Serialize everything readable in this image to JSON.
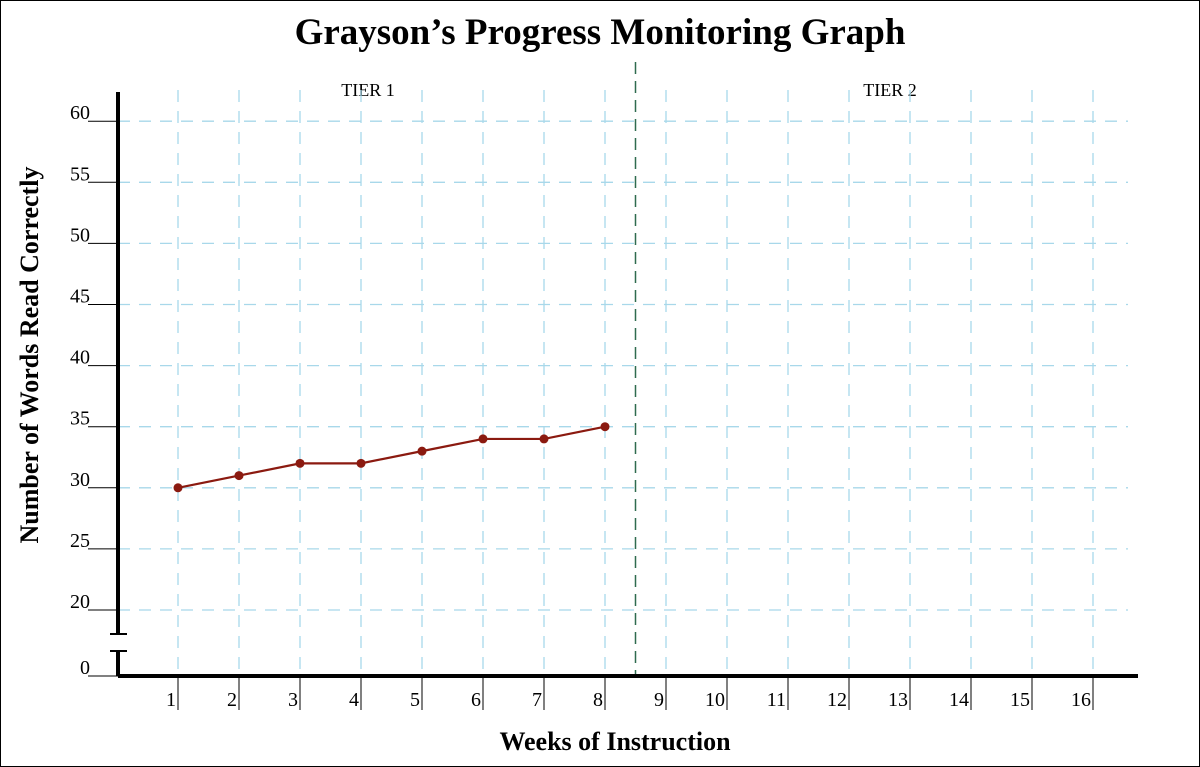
{
  "chart_data": {
    "type": "line",
    "title": "Grayson’s Progress Monitoring Graph",
    "xlabel": "Weeks of Instruction",
    "ylabel": "Number of Words Read Correctly",
    "x_ticks": [
      1,
      2,
      3,
      4,
      5,
      6,
      7,
      8,
      9,
      10,
      11,
      12,
      13,
      14,
      15,
      16
    ],
    "y_ticks": [
      0,
      20,
      25,
      30,
      35,
      40,
      45,
      50,
      55,
      60
    ],
    "ylim": [
      20,
      60
    ],
    "axis_break": true,
    "grid": true,
    "phases": [
      {
        "label": "TIER 1",
        "weeks": [
          1,
          8
        ]
      },
      {
        "label": "TIER 2",
        "weeks": [
          9,
          16
        ]
      }
    ],
    "phase_divider_after_week": 8.5,
    "series": [
      {
        "name": "Words Read Correctly",
        "color": "#8b1a10",
        "x": [
          1,
          2,
          3,
          4,
          5,
          6,
          7,
          8
        ],
        "values": [
          30,
          31,
          32,
          32,
          33,
          34,
          34,
          35
        ]
      }
    ],
    "colors": {
      "grid": "#a8d8ea",
      "divider": "#2f6b4f",
      "axis": "#000000"
    }
  }
}
